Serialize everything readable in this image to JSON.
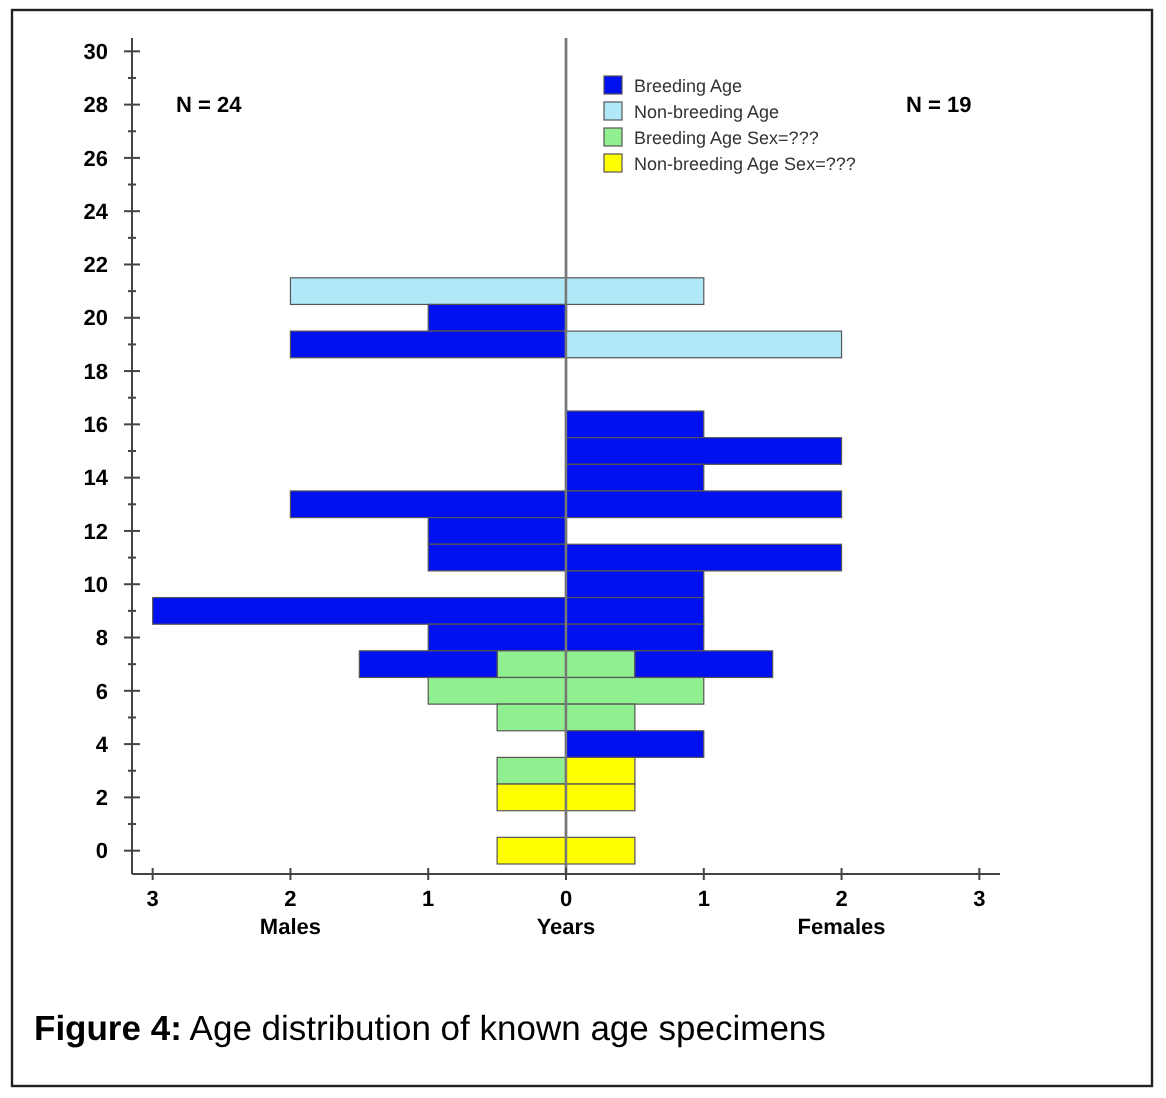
{
  "chart_data": [
    {
      "type": "bar",
      "orientation": "horizontal",
      "stacked": true,
      "xlabel": "Males",
      "categories": [
        "30",
        null,
        "28",
        null,
        "26",
        null,
        "24",
        null,
        "22",
        null,
        "20",
        null,
        "18",
        null,
        "16",
        null,
        "14",
        null,
        "12",
        null,
        "10",
        null,
        "8",
        null,
        "6",
        null,
        "4",
        null,
        "2",
        null,
        "0"
      ],
      "xlim": [
        3.15,
        0
      ],
      "xticks": [
        3,
        2,
        1,
        0
      ],
      "series": [
        {
          "color": "#ffff00",
          "values": [
            null,
            null,
            null,
            null,
            null,
            null,
            null,
            null,
            null,
            null,
            null,
            null,
            null,
            null,
            null,
            null,
            null,
            null,
            null,
            null,
            null,
            null,
            null,
            null,
            null,
            null,
            null,
            null,
            0.5,
            null,
            0.5
          ]
        },
        {
          "color": "#90f090",
          "values": [
            null,
            null,
            null,
            null,
            null,
            null,
            null,
            null,
            null,
            null,
            null,
            null,
            null,
            null,
            null,
            null,
            null,
            null,
            null,
            null,
            null,
            null,
            null,
            0.5,
            1,
            0.5,
            null,
            0.5,
            null,
            null,
            null
          ]
        },
        {
          "color": "#b0e8f8",
          "values": [
            null,
            null,
            null,
            null,
            null,
            null,
            null,
            null,
            null,
            2,
            null,
            null,
            null,
            null,
            null,
            null,
            null,
            null,
            null,
            null,
            null,
            null,
            null,
            null,
            null,
            null,
            null,
            null,
            null,
            null,
            null
          ]
        },
        {
          "color": "#0010ee",
          "values": [
            null,
            null,
            null,
            null,
            null,
            null,
            null,
            null,
            null,
            null,
            1,
            2,
            null,
            null,
            null,
            null,
            null,
            2,
            1,
            1,
            null,
            3,
            1,
            1,
            null,
            null,
            null,
            null,
            null,
            null,
            null
          ]
        }
      ],
      "annotations": [
        "N = 24",
        "Years",
        "Figure 4: Age distribution of known age specimens"
      ]
    },
    {
      "type": "bar",
      "orientation": "horizontal",
      "stacked": true,
      "xlabel": "Females",
      "legend": "top left",
      "tick_labels": "x",
      "categories": [
        null,
        null,
        null,
        null,
        null,
        null,
        null,
        null,
        null,
        null,
        null,
        null,
        null,
        null,
        null,
        null,
        null,
        null,
        null,
        null,
        null,
        null,
        null,
        null,
        null,
        null,
        null,
        null,
        null,
        null,
        null
      ],
      "xlim": [
        0,
        3.15
      ],
      "xticks": [
        {
          "value": 0,
          "label": null
        },
        1,
        2,
        3
      ],
      "series": [
        {
          "name": "Non-breeding Age Sex=???",
          "color": "#ffff00",
          "values": [
            null,
            null,
            null,
            null,
            null,
            null,
            null,
            null,
            null,
            null,
            null,
            null,
            null,
            null,
            null,
            null,
            null,
            null,
            null,
            null,
            null,
            null,
            null,
            null,
            null,
            null,
            null,
            0.5,
            0.5,
            null,
            0.5
          ]
        },
        {
          "name": "Breeding Age Sex=???",
          "color": "#90f090",
          "values": [
            null,
            null,
            null,
            null,
            null,
            null,
            null,
            null,
            null,
            null,
            null,
            null,
            null,
            null,
            null,
            null,
            null,
            null,
            null,
            null,
            null,
            null,
            null,
            0.5,
            1,
            0.5,
            null,
            null,
            null,
            null,
            null
          ]
        },
        {
          "name": "Non-breeding Age",
          "color": "#b0e8f8",
          "values": [
            null,
            null,
            null,
            null,
            null,
            null,
            null,
            null,
            null,
            1,
            null,
            2,
            null,
            null,
            null,
            null,
            null,
            null,
            null,
            null,
            null,
            null,
            null,
            null,
            null,
            null,
            null,
            null,
            null,
            null,
            null
          ]
        },
        {
          "name": "Breeding Age",
          "color": "#0010ee",
          "values": [
            null,
            null,
            null,
            null,
            null,
            null,
            null,
            null,
            null,
            null,
            null,
            null,
            null,
            null,
            1,
            2,
            1,
            2,
            null,
            2,
            1,
            1,
            1,
            1,
            null,
            null,
            1,
            null,
            null,
            null,
            null
          ]
        }
      ],
      "annotations": [
        "N = 19"
      ]
    }
  ]
}
